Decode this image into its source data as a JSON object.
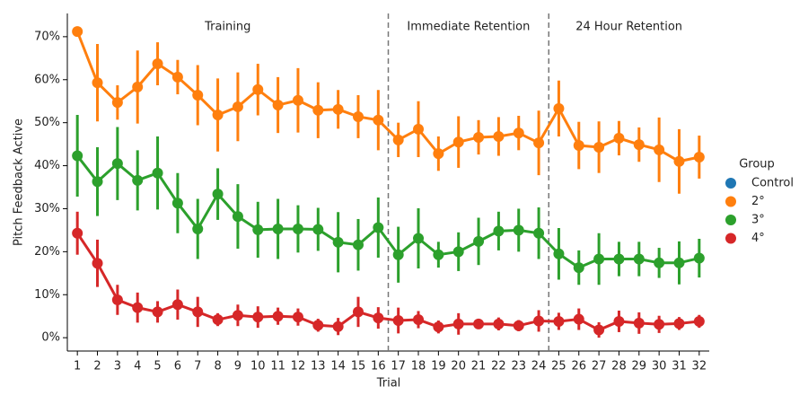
{
  "chart_data": {
    "type": "pointplot",
    "xlabel": "Trial",
    "ylabel": "Pitch Feedback Active",
    "categories": [
      "1",
      "2",
      "3",
      "4",
      "5",
      "6",
      "7",
      "8",
      "9",
      "10",
      "11",
      "12",
      "13",
      "14",
      "15",
      "16",
      "17",
      "18",
      "19",
      "20",
      "21",
      "22",
      "23",
      "24",
      "25",
      "26",
      "27",
      "28",
      "29",
      "30",
      "31",
      "32"
    ],
    "ylim": [
      -3.1,
      75.4
    ],
    "yticks": [
      {
        "value": 0,
        "label": "0%"
      },
      {
        "value": 10,
        "label": "10%"
      },
      {
        "value": 20,
        "label": "20%"
      },
      {
        "value": 30,
        "label": "30%"
      },
      {
        "value": 40,
        "label": "40%"
      },
      {
        "value": 50,
        "label": "50%"
      },
      {
        "value": 60,
        "label": "60%"
      },
      {
        "value": 70,
        "label": "70%"
      }
    ],
    "sections": [
      {
        "label": "Training",
        "from": "1",
        "to": "16"
      },
      {
        "label": "Immediate Retention",
        "from": "17",
        "to": "24"
      },
      {
        "label": "24 Hour Retention",
        "from": "25",
        "to": "32"
      }
    ],
    "legend_title": "Group",
    "legend": "right",
    "series": [
      {
        "name": "Control",
        "color": "#1f77b4",
        "values": [
          null,
          null,
          null,
          null,
          null,
          null,
          null,
          null,
          null,
          null,
          null,
          null,
          null,
          null,
          null,
          null,
          null,
          null,
          null,
          null,
          null,
          null,
          null,
          null,
          null,
          null,
          null,
          null,
          null,
          null,
          null,
          null
        ],
        "errors": [
          null,
          null,
          null,
          null,
          null,
          null,
          null,
          null,
          null,
          null,
          null,
          null,
          null,
          null,
          null,
          null,
          null,
          null,
          null,
          null,
          null,
          null,
          null,
          null,
          null,
          null,
          null,
          null,
          null,
          null,
          null,
          null
        ]
      },
      {
        "name": "2°",
        "color": "#ff7f0e",
        "values": [
          71.2,
          59.3,
          54.7,
          58.3,
          63.7,
          60.6,
          56.4,
          51.8,
          53.7,
          57.7,
          54.1,
          55.2,
          52.9,
          53.1,
          51.4,
          50.6,
          46.0,
          48.5,
          42.8,
          45.5,
          46.6,
          46.8,
          47.6,
          45.3,
          53.3,
          44.7,
          44.3,
          46.4,
          44.9,
          43.7,
          41.0,
          42.0
        ],
        "errors": [
          0.5,
          9,
          4,
          8.5,
          5,
          4,
          7,
          8.5,
          8,
          6,
          6.5,
          7.5,
          6.5,
          4.5,
          5,
          7,
          4,
          6.5,
          4,
          6,
          4,
          4.5,
          4,
          7.5,
          6.5,
          5.5,
          6,
          4,
          4,
          7.5,
          7.5,
          5
        ]
      },
      {
        "name": "3°",
        "color": "#2ca02c",
        "values": [
          42.3,
          36.3,
          40.5,
          36.6,
          38.3,
          31.3,
          25.3,
          33.4,
          28.2,
          25.1,
          25.3,
          25.3,
          25.2,
          22.2,
          21.6,
          25.6,
          19.3,
          23.1,
          19.3,
          20.0,
          22.4,
          24.8,
          25.0,
          24.3,
          19.5,
          16.3,
          18.3,
          18.3,
          18.3,
          17.4,
          17.4,
          18.5
        ],
        "errors": [
          9.5,
          8,
          8.5,
          7,
          8.5,
          7,
          7,
          6,
          7.5,
          6.5,
          7,
          5.5,
          5,
          7,
          6,
          7,
          6.5,
          7,
          3,
          4.5,
          5.5,
          4.5,
          5,
          6,
          6,
          4,
          6,
          4,
          4,
          3.5,
          5,
          4.5
        ]
      },
      {
        "name": "4°",
        "color": "#d62728",
        "values": [
          24.3,
          17.3,
          8.8,
          7.0,
          6.0,
          7.7,
          6.0,
          4.2,
          5.2,
          4.8,
          5.0,
          4.8,
          2.9,
          2.6,
          6.0,
          4.6,
          4.0,
          4.2,
          2.5,
          3.2,
          3.2,
          3.2,
          2.8,
          3.9,
          3.8,
          4.3,
          1.8,
          3.8,
          3.4,
          3.1,
          3.3,
          3.8
        ],
        "errors": [
          5,
          5.5,
          3.5,
          3.5,
          2.5,
          3.5,
          3.5,
          1.5,
          2.5,
          2.5,
          2,
          2,
          1.5,
          2,
          3.5,
          2.5,
          3,
          2,
          1.5,
          2.5,
          1,
          1.5,
          1.3,
          2.5,
          2,
          2.5,
          1.8,
          2.5,
          2.5,
          2,
          1.5,
          1.5
        ]
      }
    ]
  }
}
